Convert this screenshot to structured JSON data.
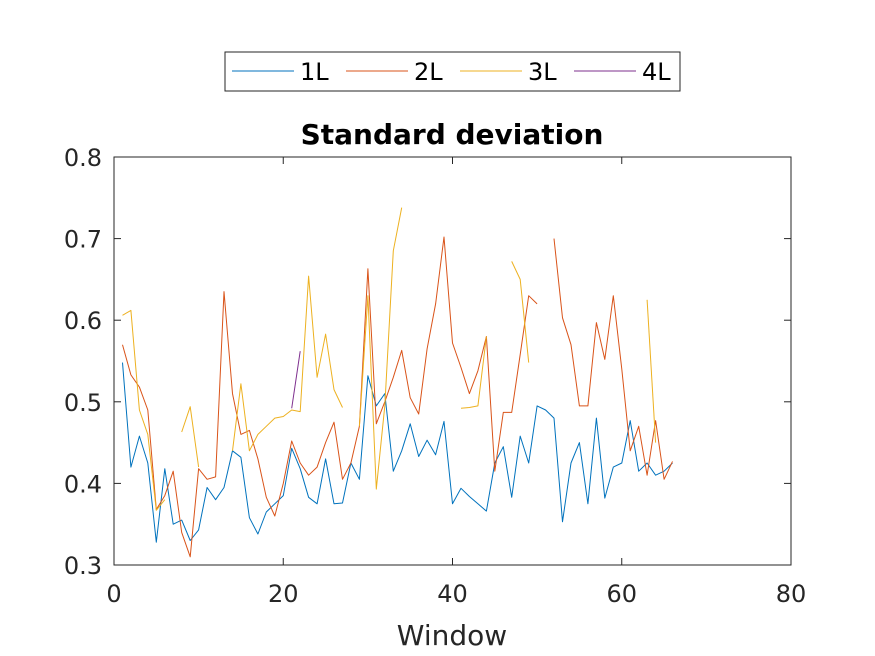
{
  "chart_data": {
    "type": "line",
    "title": "Standard deviation",
    "xlabel": "Window",
    "ylabel": "",
    "xlim": [
      0,
      80
    ],
    "ylim": [
      0.3,
      0.8
    ],
    "xticks": [
      0,
      20,
      40,
      60,
      80
    ],
    "yticks": [
      0.3,
      0.4,
      0.5,
      0.6,
      0.7,
      0.8
    ],
    "xtick_labels": [
      "0",
      "20",
      "40",
      "60",
      "80"
    ],
    "ytick_labels": [
      "0.3",
      "0.4",
      "0.5",
      "0.6",
      "0.7",
      "0.8"
    ],
    "grid": false,
    "legend_position": "top, outside, horizontal",
    "series": [
      {
        "name": "1L",
        "color": "#0072BD",
        "points": [
          [
            1,
            0.548
          ],
          [
            2,
            0.42
          ],
          [
            3,
            0.458
          ],
          [
            4,
            0.425
          ],
          [
            5,
            0.328
          ],
          [
            6,
            0.418
          ],
          [
            7,
            0.35
          ],
          [
            8,
            0.355
          ],
          [
            9,
            0.33
          ],
          [
            10,
            0.343
          ],
          [
            11,
            0.395
          ],
          [
            12,
            0.38
          ],
          [
            13,
            0.395
          ],
          [
            14,
            0.44
          ],
          [
            15,
            0.432
          ],
          [
            16,
            0.358
          ],
          [
            17,
            0.338
          ],
          [
            18,
            0.365
          ],
          [
            19,
            0.375
          ],
          [
            20,
            0.385
          ],
          [
            21,
            0.443
          ],
          [
            22,
            0.418
          ],
          [
            23,
            0.383
          ],
          [
            24,
            0.375
          ],
          [
            25,
            0.43
          ],
          [
            26,
            0.375
          ],
          [
            27,
            0.376
          ],
          [
            28,
            0.425
          ],
          [
            29,
            0.405
          ],
          [
            30,
            0.532
          ],
          [
            31,
            0.495
          ],
          [
            32,
            0.51
          ],
          [
            33,
            0.415
          ],
          [
            34,
            0.44
          ],
          [
            35,
            0.473
          ],
          [
            36,
            0.433
          ],
          [
            37,
            0.453
          ],
          [
            38,
            0.435
          ],
          [
            39,
            0.476
          ],
          [
            40,
            0.375
          ],
          [
            41,
            0.394
          ],
          [
            42,
            0.384
          ],
          [
            43,
            0.375
          ],
          [
            44,
            0.366
          ],
          [
            45,
            0.425
          ],
          [
            46,
            0.445
          ],
          [
            47,
            0.383
          ],
          [
            48,
            0.458
          ],
          [
            49,
            0.425
          ],
          [
            50,
            0.495
          ],
          [
            51,
            0.49
          ],
          [
            52,
            0.48
          ],
          [
            53,
            0.353
          ],
          [
            54,
            0.425
          ],
          [
            55,
            0.45
          ],
          [
            56,
            0.375
          ],
          [
            57,
            0.48
          ],
          [
            58,
            0.382
          ],
          [
            59,
            0.42
          ],
          [
            60,
            0.425
          ],
          [
            61,
            0.477
          ],
          [
            62,
            0.415
          ],
          [
            63,
            0.425
          ],
          [
            64,
            0.41
          ],
          [
            65,
            0.415
          ],
          [
            66,
            0.425
          ]
        ]
      },
      {
        "name": "2L",
        "color": "#D95319",
        "points": [
          [
            1,
            0.57
          ],
          [
            2,
            0.533
          ],
          [
            3,
            0.518
          ],
          [
            4,
            0.49
          ],
          [
            5,
            0.368
          ],
          [
            6,
            0.385
          ],
          [
            7,
            0.415
          ],
          [
            8,
            0.34
          ],
          [
            9,
            0.31
          ],
          [
            10,
            0.418
          ],
          [
            11,
            0.405
          ],
          [
            12,
            0.408
          ],
          [
            13,
            0.635
          ],
          [
            14,
            0.51
          ],
          [
            15,
            0.46
          ],
          [
            16,
            0.465
          ],
          [
            17,
            0.43
          ],
          [
            18,
            0.383
          ],
          [
            19,
            0.36
          ],
          [
            20,
            0.4
          ],
          [
            21,
            0.452
          ],
          [
            22,
            0.425
          ],
          [
            23,
            0.41
          ],
          [
            24,
            0.42
          ],
          [
            25,
            0.45
          ],
          [
            26,
            0.475
          ],
          [
            27,
            0.405
          ],
          [
            28,
            0.425
          ],
          [
            29,
            0.47
          ],
          [
            30,
            0.663
          ],
          [
            31,
            0.473
          ],
          [
            32,
            0.5
          ],
          [
            33,
            0.53
          ],
          [
            34,
            0.563
          ],
          [
            35,
            0.505
          ],
          [
            36,
            0.485
          ],
          [
            37,
            0.565
          ],
          [
            38,
            0.62
          ],
          [
            39,
            0.702
          ],
          [
            40,
            0.572
          ],
          [
            41,
            0.542
          ],
          [
            42,
            0.51
          ],
          [
            43,
            0.538
          ],
          [
            44,
            0.58
          ],
          [
            45,
            0.415
          ],
          [
            46,
            0.487
          ],
          [
            47,
            0.487
          ],
          [
            48,
            0.558
          ],
          [
            49,
            0.63
          ],
          [
            50,
            0.62
          ],
          [
            null,
            null
          ],
          [
            52,
            0.7
          ],
          [
            53,
            0.603
          ],
          [
            54,
            0.57
          ],
          [
            55,
            0.495
          ],
          [
            56,
            0.495
          ],
          [
            57,
            0.597
          ],
          [
            58,
            0.552
          ],
          [
            59,
            0.63
          ],
          [
            60,
            0.54
          ],
          [
            61,
            0.44
          ],
          [
            62,
            0.47
          ],
          [
            63,
            0.41
          ],
          [
            64,
            0.477
          ],
          [
            65,
            0.405
          ],
          [
            66,
            0.427
          ]
        ]
      },
      {
        "name": "3L",
        "color": "#EDB120",
        "points": [
          [
            1,
            0.606
          ],
          [
            2,
            0.612
          ],
          [
            3,
            0.49
          ],
          [
            4,
            0.46
          ],
          [
            5,
            0.367
          ],
          [
            6,
            0.38
          ],
          [
            null,
            null
          ],
          [
            8,
            0.463
          ],
          [
            9,
            0.494
          ],
          [
            10,
            0.42
          ],
          [
            null,
            null
          ],
          [
            14,
            0.44
          ],
          [
            15,
            0.522
          ],
          [
            16,
            0.44
          ],
          [
            17,
            0.46
          ],
          [
            18,
            0.47
          ],
          [
            19,
            0.48
          ],
          [
            20,
            0.482
          ],
          [
            21,
            0.49
          ],
          [
            22,
            0.488
          ],
          [
            23,
            0.654
          ],
          [
            24,
            0.53
          ],
          [
            25,
            0.583
          ],
          [
            26,
            0.515
          ],
          [
            27,
            0.493
          ],
          [
            null,
            null
          ],
          [
            29,
            0.47
          ],
          [
            30,
            0.63
          ],
          [
            31,
            0.393
          ],
          [
            32,
            0.495
          ],
          [
            33,
            0.685
          ],
          [
            34,
            0.738
          ],
          [
            null,
            null
          ],
          [
            41,
            0.492
          ],
          [
            42,
            0.493
          ],
          [
            43,
            0.495
          ],
          [
            44,
            0.58
          ],
          [
            null,
            null
          ],
          [
            47,
            0.672
          ],
          [
            48,
            0.65
          ],
          [
            49,
            0.548
          ],
          [
            null,
            null
          ],
          [
            63,
            0.625
          ],
          [
            64,
            0.45
          ]
        ]
      },
      {
        "name": "4L",
        "color": "#7E2F8E",
        "points": [
          [
            21,
            0.492
          ],
          [
            22,
            0.562
          ]
        ]
      }
    ]
  }
}
